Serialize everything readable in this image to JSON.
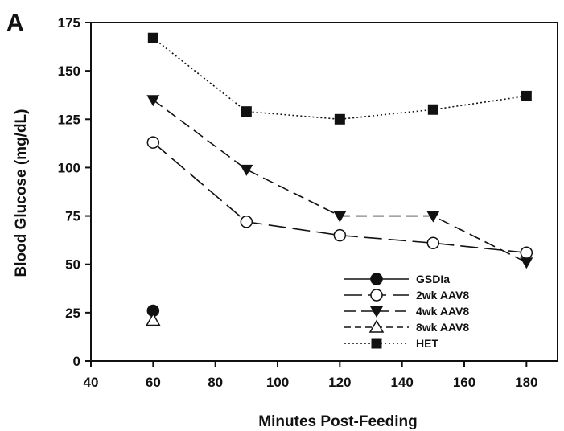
{
  "panel_label": "A",
  "chart_data": {
    "type": "line",
    "xlabel": "Minutes Post-Feeding",
    "ylabel": "Blood Glucose (mg/dL)",
    "xlim": [
      40,
      190
    ],
    "ylim": [
      0,
      175
    ],
    "xticks": [
      40,
      60,
      80,
      100,
      120,
      140,
      160,
      180
    ],
    "yticks": [
      0,
      25,
      50,
      75,
      100,
      125,
      150,
      175
    ],
    "grid": false,
    "legend_position": "bottom-right",
    "series": [
      {
        "name": "GSDIa",
        "x": [
          60
        ],
        "y": [
          26
        ],
        "marker": "circle-filled",
        "line": "solid",
        "color": "#111111"
      },
      {
        "name": "2wk AAV8",
        "x": [
          60,
          90,
          120,
          150,
          180
        ],
        "y": [
          113,
          72,
          65,
          61,
          56
        ],
        "marker": "circle-open",
        "line": "longdash",
        "color": "#111111"
      },
      {
        "name": "4wk AAV8",
        "x": [
          60,
          90,
          120,
          150,
          180
        ],
        "y": [
          135,
          99,
          75,
          75,
          51
        ],
        "marker": "triangle-down-filled",
        "line": "dash",
        "color": "#111111"
      },
      {
        "name": "8wk AAV8",
        "x": [
          60
        ],
        "y": [
          21
        ],
        "marker": "triangle-up-open",
        "line": "shortdash",
        "color": "#111111"
      },
      {
        "name": "HET",
        "x": [
          60,
          90,
          120,
          150,
          180
        ],
        "y": [
          167,
          129,
          125,
          130,
          137
        ],
        "marker": "square-filled",
        "line": "dotted",
        "color": "#111111"
      }
    ]
  }
}
